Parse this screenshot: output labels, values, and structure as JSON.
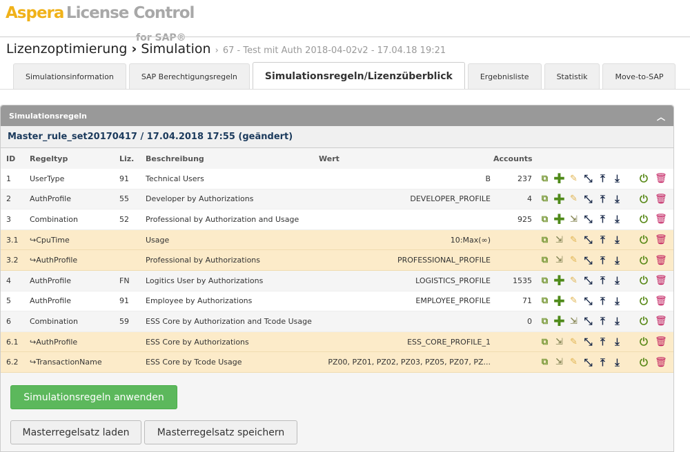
{
  "logo": {
    "brand": "Aspera",
    "product": "License Control",
    "suffix": "for SAP®"
  },
  "breadcrumb": {
    "level1": "Lizenzoptimierung",
    "level2": "Simulation",
    "detail": "67 - Test mit Auth 2018-04-02v2 - 17.04.18 19:21"
  },
  "tabs": [
    {
      "label": "Simulationsinformation"
    },
    {
      "label": "SAP Berechtigungsregeln"
    },
    {
      "label": "Simulationsregeln/Lizenzüberblick",
      "active": true
    },
    {
      "label": "Ergebnisliste"
    },
    {
      "label": "Statistik"
    },
    {
      "label": "Move-to-SAP"
    }
  ],
  "panel": {
    "title": "Simulationsregeln",
    "ruleset": "Master_rule_set20170417 / 17.04.2018 17:55 (geändert)"
  },
  "table": {
    "headers": {
      "id": "ID",
      "type": "Regeltyp",
      "liz": "Liz.",
      "desc": "Beschreibung",
      "wert": "Wert",
      "accounts": "Accounts"
    },
    "rows": [
      {
        "id": "1",
        "type": "UserType",
        "liz": "91",
        "desc": "Technical Users",
        "wert": "B",
        "accounts": "237",
        "kind": "simple"
      },
      {
        "id": "2",
        "type": "AuthProfile",
        "liz": "55",
        "desc": "Developer by Authorizations",
        "wert": "DEVELOPER_PROFILE",
        "accounts": "4",
        "kind": "simple"
      },
      {
        "id": "3",
        "type": "Combination",
        "liz": "52",
        "desc": "Professional by Authorization and Usage",
        "wert": "",
        "accounts": "925",
        "kind": "combo"
      },
      {
        "id": "3.1",
        "type": "↪CpuTime",
        "liz": "",
        "desc": "Usage",
        "wert": "10:Max(∞)",
        "accounts": "",
        "kind": "sub"
      },
      {
        "id": "3.2",
        "type": "↪AuthProfile",
        "liz": "",
        "desc": "Professional by Authorizations",
        "wert": "PROFESSIONAL_PROFILE",
        "accounts": "",
        "kind": "sub"
      },
      {
        "id": "4",
        "type": "AuthProfile",
        "liz": "FN",
        "desc": "Logitics User by Authorizations",
        "wert": "LOGISTICS_PROFILE",
        "accounts": "1535",
        "kind": "simple"
      },
      {
        "id": "5",
        "type": "AuthProfile",
        "liz": "91",
        "desc": "Employee by Authorizations",
        "wert": "EMPLOYEE_PROFILE",
        "accounts": "71",
        "kind": "simple"
      },
      {
        "id": "6",
        "type": "Combination",
        "liz": "59",
        "desc": "ESS Core by Authorization and Tcode Usage",
        "wert": "",
        "accounts": "0",
        "kind": "combo"
      },
      {
        "id": "6.1",
        "type": "↪AuthProfile",
        "liz": "",
        "desc": "ESS Core by Authorizations",
        "wert": "ESS_CORE_PROFILE_1",
        "accounts": "",
        "kind": "sub"
      },
      {
        "id": "6.2",
        "type": "↪TransactionName",
        "liz": "",
        "desc": "ESS Core by Tcode Usage",
        "wert": "PZ00, PZ01, PZ02, PZ03, PZ05, PZ07, PZ...",
        "accounts": "",
        "kind": "sub"
      }
    ]
  },
  "buttons": {
    "apply": "Simulationsregeln anwenden",
    "load": "Masterregelsatz laden",
    "save": "Masterregelsatz speichern"
  },
  "colors": {
    "accent_green": "#5cb85c",
    "sub_row": "#fcebc9",
    "header_gray": "#999999",
    "logo_orange": "#f0b21a"
  }
}
